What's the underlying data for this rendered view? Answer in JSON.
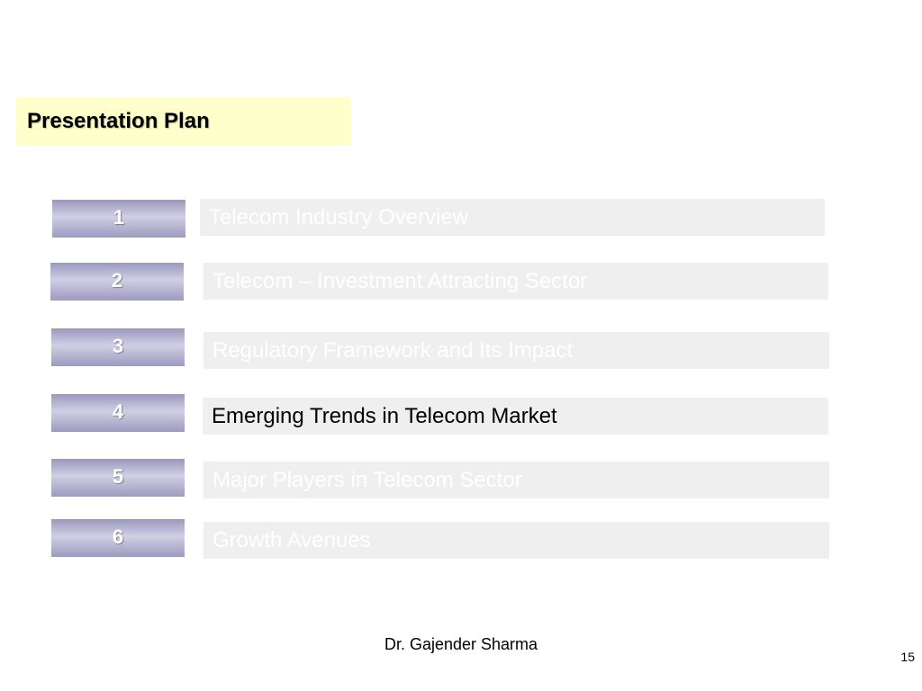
{
  "slide": {
    "title": "Presentation Plan",
    "items": [
      {
        "number": "1",
        "label": "Telecom Industry Overview",
        "active": false
      },
      {
        "number": "2",
        "label": "Telecom – Investment Attracting Sector",
        "active": false
      },
      {
        "number": "3",
        "label": "Regulatory Framework and Its Impact",
        "active": false
      },
      {
        "number": "4",
        "label": "Emerging Trends in Telecom Market",
        "active": true
      },
      {
        "number": "5",
        "label": "Major Players in Telecom Sector",
        "active": false
      },
      {
        "number": "6",
        "label": "Growth Avenues",
        "active": false
      }
    ],
    "author": "Dr. Gajender Sharma",
    "page_number": "15"
  },
  "colors": {
    "title_background": "#ffffcc",
    "number_box": "#b4b3d1",
    "item_background": "#efefef",
    "inactive_text": "#ffffff",
    "active_text": "#000000"
  }
}
